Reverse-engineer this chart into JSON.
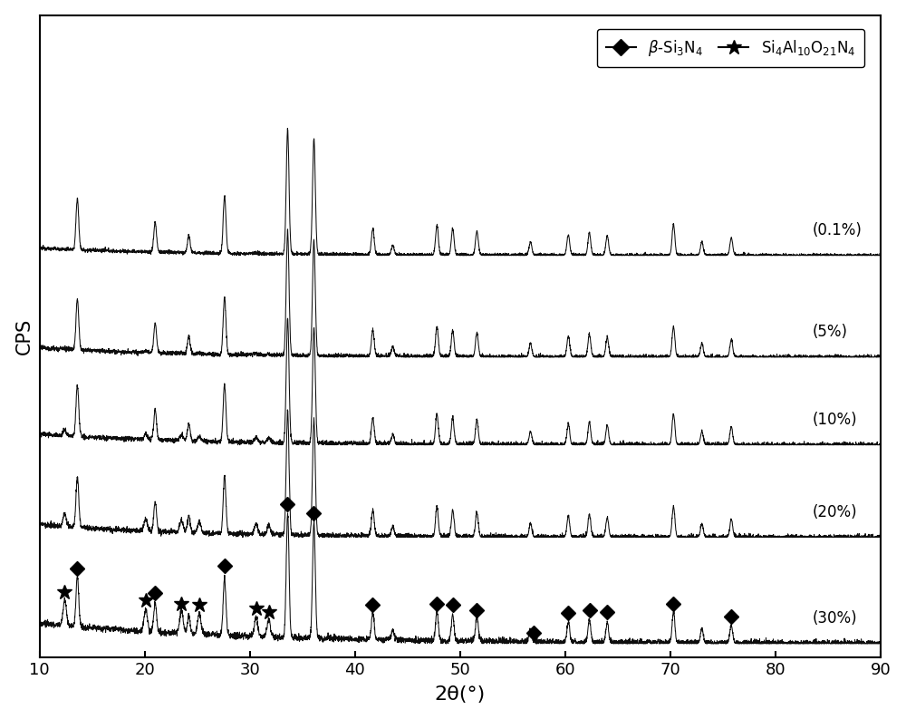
{
  "x_min": 10,
  "x_max": 90,
  "xlabel": "2θ(°)",
  "ylabel": "CPS",
  "background_color": "#ffffff",
  "plot_bg_color": "#ffffff",
  "labels": [
    "(30%)",
    "(20%)",
    "(10%)",
    "(5%)",
    "(0.1%)"
  ],
  "offsets": [
    4.2,
    3.1,
    2.15,
    1.15,
    0.0
  ],
  "figsize": [
    10.0,
    7.93
  ],
  "dpi": 100,
  "beta_peaks": [
    13.6,
    21.0,
    24.2,
    27.6,
    33.6,
    36.1,
    41.7,
    43.6,
    47.8,
    49.3,
    51.6,
    56.7,
    60.3,
    62.3,
    64.0,
    70.3,
    73.0,
    75.8
  ],
  "beta_heights": [
    0.55,
    0.32,
    0.18,
    0.62,
    1.35,
    1.25,
    0.28,
    0.1,
    0.32,
    0.28,
    0.26,
    0.14,
    0.22,
    0.24,
    0.21,
    0.33,
    0.14,
    0.19
  ],
  "sialon_peaks": [
    12.4,
    20.1,
    23.5,
    25.2,
    30.6,
    31.8
  ],
  "sialon_heights": [
    0.32,
    0.28,
    0.3,
    0.26,
    0.25,
    0.22
  ],
  "diamond_marker_peaks": [
    13.6,
    21.0,
    27.6,
    33.6,
    36.1,
    41.7,
    47.8,
    49.3,
    51.6,
    57.0,
    60.3,
    62.3,
    64.0,
    70.3,
    75.8
  ],
  "star_marker_peaks": [
    12.4,
    20.1,
    23.5,
    25.2,
    30.6,
    31.8
  ],
  "noise_levels": [
    0.01,
    0.012,
    0.013,
    0.014,
    0.016
  ],
  "bg_amplitudes": [
    0.08,
    0.1,
    0.12,
    0.14,
    0.22
  ],
  "bg_decays": [
    0.07,
    0.07,
    0.07,
    0.07,
    0.05
  ]
}
